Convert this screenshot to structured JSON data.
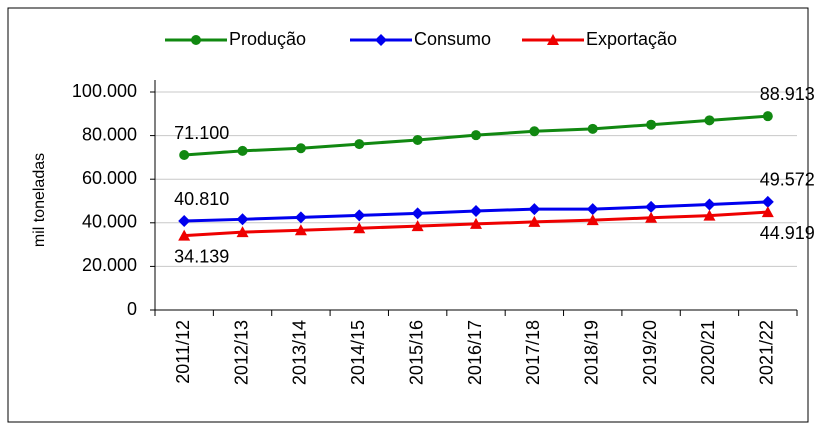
{
  "chart_data": {
    "type": "line",
    "categories": [
      "2011/12",
      "2012/13",
      "2013/14",
      "2014/15",
      "2015/16",
      "2016/17",
      "2017/18",
      "2018/19",
      "2019/20",
      "2020/21",
      "2021/22"
    ],
    "y_label": "mil toneladas",
    "series": [
      {
        "name": "Produção",
        "color": "#118811",
        "marker": "circle",
        "values": [
          71100,
          73000,
          74200,
          76100,
          78000,
          80200,
          82000,
          83100,
          85000,
          87000,
          88913
        ],
        "value_labels": [
          "71.100",
          null,
          null,
          null,
          null,
          null,
          null,
          null,
          null,
          null,
          "88.913"
        ]
      },
      {
        "name": "Consumo",
        "color": "#0000ee",
        "marker": "diamond",
        "values": [
          40810,
          41600,
          42500,
          43400,
          44300,
          45400,
          46300,
          46300,
          47300,
          48400,
          49572
        ],
        "value_labels": [
          "40.810",
          null,
          null,
          null,
          null,
          null,
          null,
          null,
          null,
          null,
          "49.572"
        ]
      },
      {
        "name": "Exportação",
        "color": "#ee0000",
        "marker": "triangle",
        "values": [
          34139,
          35700,
          36600,
          37500,
          38500,
          39500,
          40400,
          41200,
          42300,
          43300,
          44919
        ],
        "value_labels": [
          "34.139",
          null,
          null,
          null,
          null,
          null,
          null,
          null,
          null,
          null,
          "44.919"
        ]
      }
    ],
    "ylim": [
      0,
      100000
    ],
    "yticks": [
      0,
      {
        "value": 20000,
        "label": "20.000"
      },
      {
        "value": 40000,
        "label": "40.000"
      },
      {
        "value": 60000,
        "label": "60.000"
      },
      {
        "value": 80000,
        "label": "80.000"
      },
      {
        "value": 100000,
        "label": "100.000"
      }
    ],
    "grid": true,
    "legend": "top"
  }
}
